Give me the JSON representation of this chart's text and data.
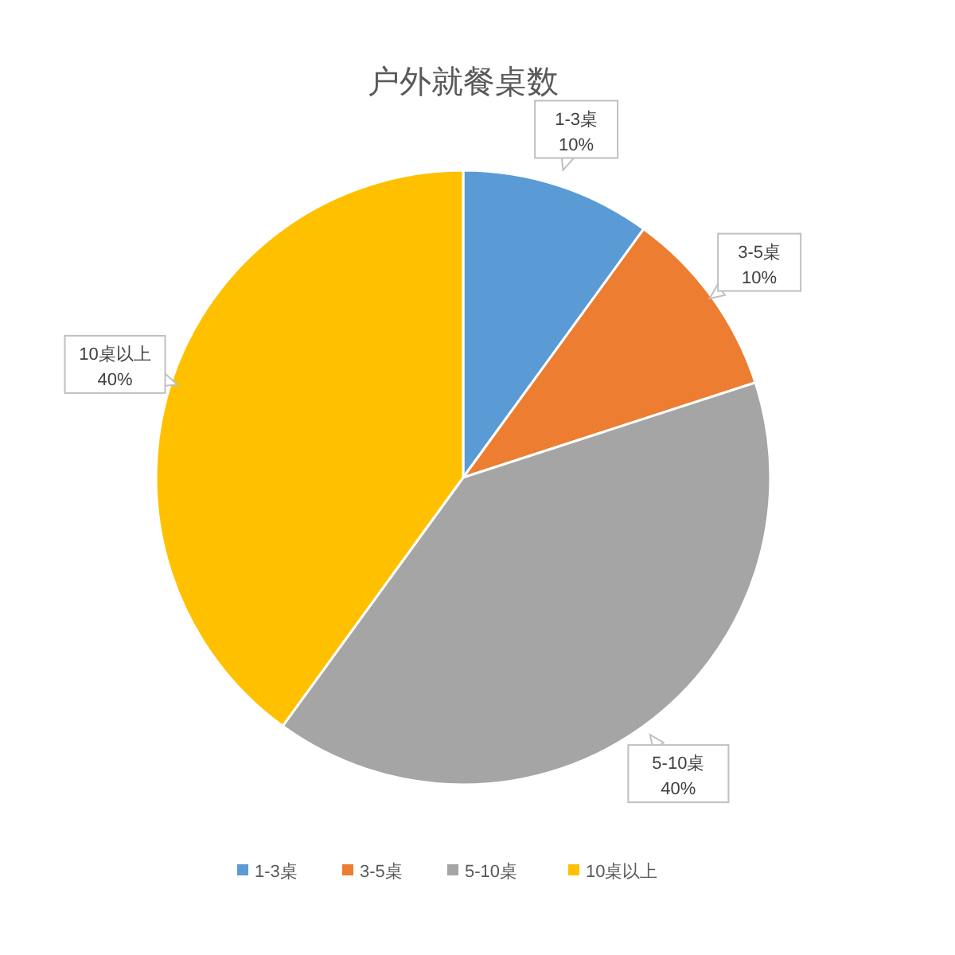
{
  "chart_data": {
    "type": "pie",
    "title": "户外就餐桌数",
    "categories": [
      "1-3桌",
      "3-5桌",
      "5-10桌",
      "10桌以上"
    ],
    "values": [
      10,
      10,
      40,
      40
    ],
    "colors": [
      "#5b9bd5",
      "#ed7d31",
      "#a5a5a5",
      "#ffc000"
    ],
    "value_labels": [
      "10%",
      "10%",
      "40%",
      "40%"
    ],
    "legend": "bottom"
  }
}
